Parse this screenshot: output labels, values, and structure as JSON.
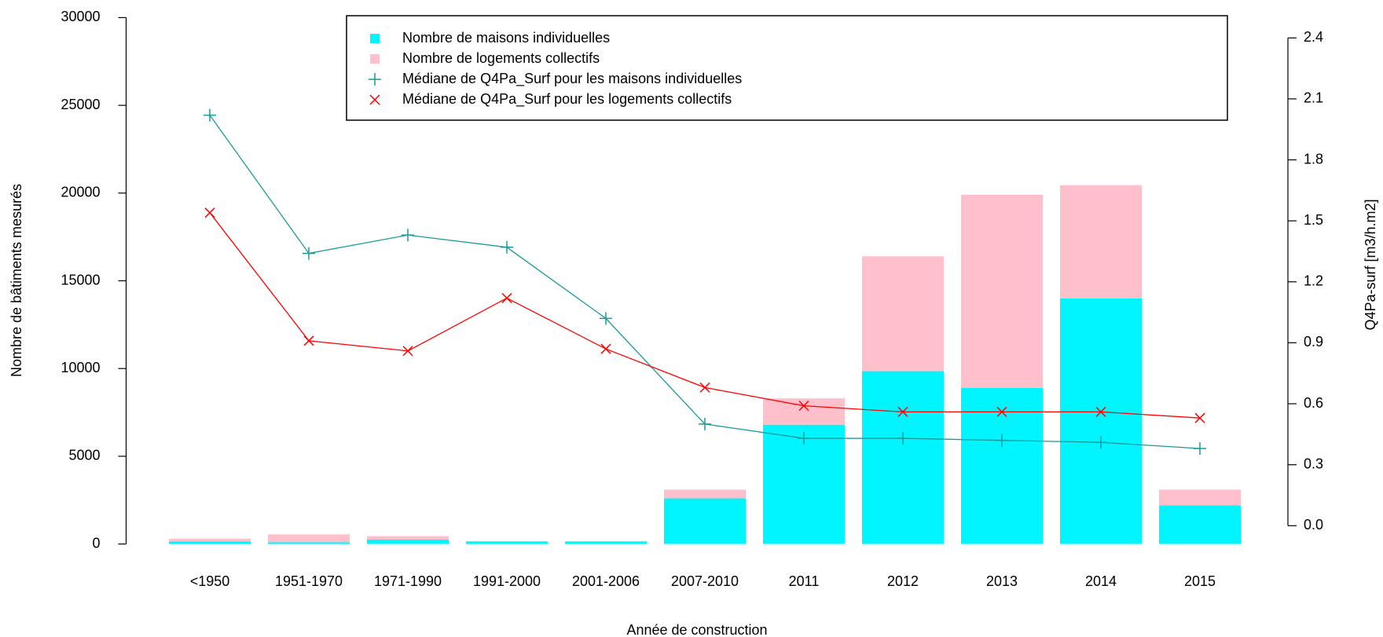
{
  "chart_data": {
    "type": "bar",
    "stacked": true,
    "x_label": "Année de construction",
    "y_label": "Nombre de bâtiments mesurés",
    "y2_label": "Q4Pa-surf [m3/h.m2]",
    "categories": [
      "<1950",
      "1951-1970",
      "1971-1990",
      "1991-2000",
      "2001-2006",
      "2007-2010",
      "2011",
      "2012",
      "2013",
      "2014",
      "2015"
    ],
    "series": [
      {
        "name": "Nombre de maisons individuelles",
        "type": "bar",
        "color": "#00f5ff",
        "values": [
          150,
          100,
          250,
          150,
          150,
          2600,
          6800,
          9850,
          8900,
          14000,
          2200
        ]
      },
      {
        "name": "Nombre de logements collectifs",
        "type": "bar",
        "color": "#ffc0cb",
        "values": [
          150,
          450,
          200,
          0,
          0,
          500,
          1500,
          6550,
          11000,
          6450,
          900
        ]
      },
      {
        "name": "Médiane de Q4Pa_Surf pour les maisons individuelles",
        "type": "line",
        "marker": "plus",
        "axis": "y2",
        "color": "#1a9a9a",
        "values": [
          2.02,
          1.34,
          1.43,
          1.37,
          1.02,
          0.5,
          0.43,
          0.43,
          0.42,
          0.41,
          0.38
        ]
      },
      {
        "name": "Médiane de Q4Pa_Surf pour les logements collectifs",
        "type": "line",
        "marker": "cross",
        "axis": "y2",
        "color": "#ff0000",
        "values": [
          1.54,
          0.91,
          0.86,
          1.12,
          0.87,
          0.68,
          0.59,
          0.56,
          0.56,
          0.56,
          0.53
        ]
      }
    ],
    "ylim": [
      0,
      30000
    ],
    "yticks": [
      0,
      5000,
      10000,
      15000,
      20000,
      25000,
      30000
    ],
    "y2lim": [
      -0.09,
      2.5
    ],
    "y2ticks": [
      {
        "value": 0,
        "label": "0.0"
      },
      0.3,
      0.6,
      0.9,
      1.2,
      1.5,
      1.8,
      2.1,
      2.4
    ],
    "legend": "top"
  }
}
